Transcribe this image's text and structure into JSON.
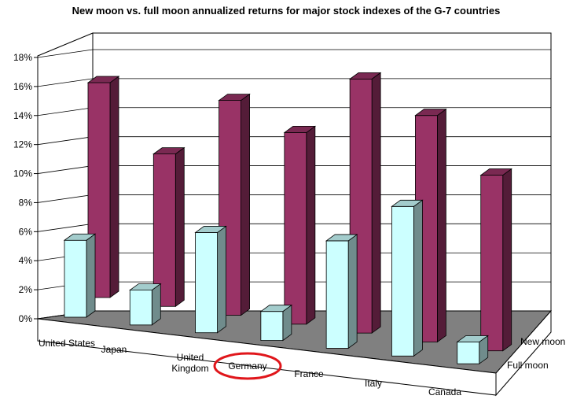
{
  "chart_data": {
    "type": "bar",
    "title": "New moon vs. full moon annualized returns for major stock indexes of the G-7 countries",
    "categories": [
      "United States",
      "Japan",
      "United Kingdom",
      "Germany",
      "France",
      "Italy",
      "Canada"
    ],
    "category_lines": [
      [
        "United States"
      ],
      [
        "Japan"
      ],
      [
        "United",
        "Kingdom"
      ],
      [
        "Germany"
      ],
      [
        "France"
      ],
      [
        "Italy"
      ],
      [
        "Canada"
      ]
    ],
    "series": [
      {
        "name": "New moon",
        "values": [
          14.8,
          10.5,
          14.8,
          13.2,
          17.5,
          15.6,
          12.1
        ],
        "color": "#993366"
      },
      {
        "name": "Full moon",
        "values": [
          5.3,
          2.4,
          6.9,
          2.0,
          7.4,
          10.3,
          1.5
        ],
        "color": "#CCFFFF"
      }
    ],
    "yticks": [
      "0%",
      "2%",
      "4%",
      "6%",
      "8%",
      "10%",
      "12%",
      "14%",
      "16%",
      "18%"
    ],
    "ylim": [
      0,
      18
    ],
    "highlight": "Germany",
    "highlight_color": "#E0161B",
    "floor_color": "#808080",
    "grid": true
  }
}
